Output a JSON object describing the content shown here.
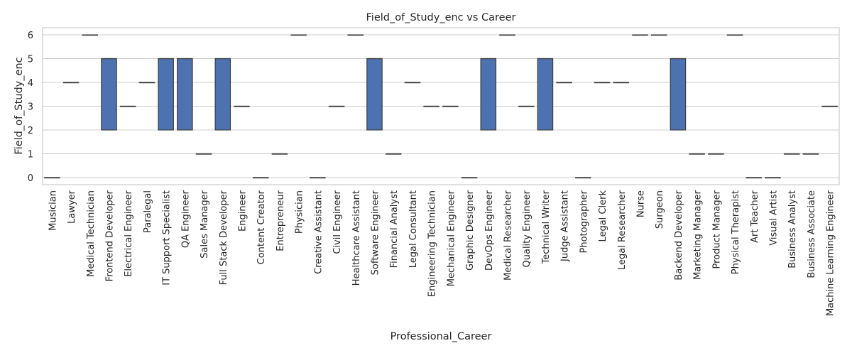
{
  "chart_data": {
    "type": "box",
    "title": "Field_of_Study_enc vs Career",
    "xlabel": "Professional_Career",
    "ylabel": "Field_of_Study_enc",
    "ylim": [
      -0.3,
      6.3
    ],
    "yticks": [
      0,
      1,
      2,
      3,
      4,
      5,
      6
    ],
    "grid": true,
    "colors": {
      "box": "#4c72b0",
      "edge": "#3d3d3d",
      "grid": "#cccccc",
      "frame": "#cccccc"
    },
    "categories": [
      "Musician",
      "Lawyer",
      "Medical Technician",
      "Frontend Developer",
      "Electrical Engineer",
      "Paralegal",
      "IT Support Specialist",
      "QA Engineer",
      "Sales Manager",
      "Full Stack Developer",
      "Engineer",
      "Content Creator",
      "Entrepreneur",
      "Physician",
      "Creative Assistant",
      "Civil Engineer",
      "Healthcare Assistant",
      "Software Engineer",
      "Financial Analyst",
      "Legal Consultant",
      "Engineering Technician",
      "Mechanical Engineer",
      "Graphic Designer",
      "DevOps Engineer",
      "Medical Researcher",
      "Quality Engineer",
      "Technical Writer",
      "Judge Assistant",
      "Photographer",
      "Legal Clerk",
      "Legal Researcher",
      "Nurse",
      "Surgeon",
      "Backend Developer",
      "Marketing Manager",
      "Product Manager",
      "Physical Therapist",
      "Art Teacher",
      "Visual Artist",
      "Business Analyst",
      "Business Associate",
      "Machine Learning Engineer"
    ],
    "boxes": [
      {
        "q1": 0,
        "median": 0,
        "q3": 0
      },
      {
        "q1": 4,
        "median": 4,
        "q3": 4
      },
      {
        "q1": 6,
        "median": 6,
        "q3": 6
      },
      {
        "q1": 2,
        "median": 5,
        "q3": 5
      },
      {
        "q1": 3,
        "median": 3,
        "q3": 3
      },
      {
        "q1": 4,
        "median": 4,
        "q3": 4
      },
      {
        "q1": 2,
        "median": 5,
        "q3": 5
      },
      {
        "q1": 2,
        "median": 5,
        "q3": 5
      },
      {
        "q1": 1,
        "median": 1,
        "q3": 1
      },
      {
        "q1": 2,
        "median": 5,
        "q3": 5
      },
      {
        "q1": 3,
        "median": 3,
        "q3": 3
      },
      {
        "q1": 0,
        "median": 0,
        "q3": 0
      },
      {
        "q1": 1,
        "median": 1,
        "q3": 1
      },
      {
        "q1": 6,
        "median": 6,
        "q3": 6
      },
      {
        "q1": 0,
        "median": 0,
        "q3": 0
      },
      {
        "q1": 3,
        "median": 3,
        "q3": 3
      },
      {
        "q1": 6,
        "median": 6,
        "q3": 6
      },
      {
        "q1": 2,
        "median": 5,
        "q3": 5
      },
      {
        "q1": 1,
        "median": 1,
        "q3": 1
      },
      {
        "q1": 4,
        "median": 4,
        "q3": 4
      },
      {
        "q1": 3,
        "median": 3,
        "q3": 3
      },
      {
        "q1": 3,
        "median": 3,
        "q3": 3
      },
      {
        "q1": 0,
        "median": 0,
        "q3": 0
      },
      {
        "q1": 2,
        "median": 5,
        "q3": 5
      },
      {
        "q1": 6,
        "median": 6,
        "q3": 6
      },
      {
        "q1": 3,
        "median": 3,
        "q3": 3
      },
      {
        "q1": 2,
        "median": 5,
        "q3": 5
      },
      {
        "q1": 4,
        "median": 4,
        "q3": 4
      },
      {
        "q1": 0,
        "median": 0,
        "q3": 0
      },
      {
        "q1": 4,
        "median": 4,
        "q3": 4
      },
      {
        "q1": 4,
        "median": 4,
        "q3": 4
      },
      {
        "q1": 6,
        "median": 6,
        "q3": 6
      },
      {
        "q1": 6,
        "median": 6,
        "q3": 6
      },
      {
        "q1": 2,
        "median": 5,
        "q3": 5
      },
      {
        "q1": 1,
        "median": 1,
        "q3": 1
      },
      {
        "q1": 1,
        "median": 1,
        "q3": 1
      },
      {
        "q1": 6,
        "median": 6,
        "q3": 6
      },
      {
        "q1": 0,
        "median": 0,
        "q3": 0
      },
      {
        "q1": 0,
        "median": 0,
        "q3": 0
      },
      {
        "q1": 1,
        "median": 1,
        "q3": 1
      },
      {
        "q1": 1,
        "median": 1,
        "q3": 1
      },
      {
        "q1": 3,
        "median": 3,
        "q3": 3
      }
    ]
  }
}
